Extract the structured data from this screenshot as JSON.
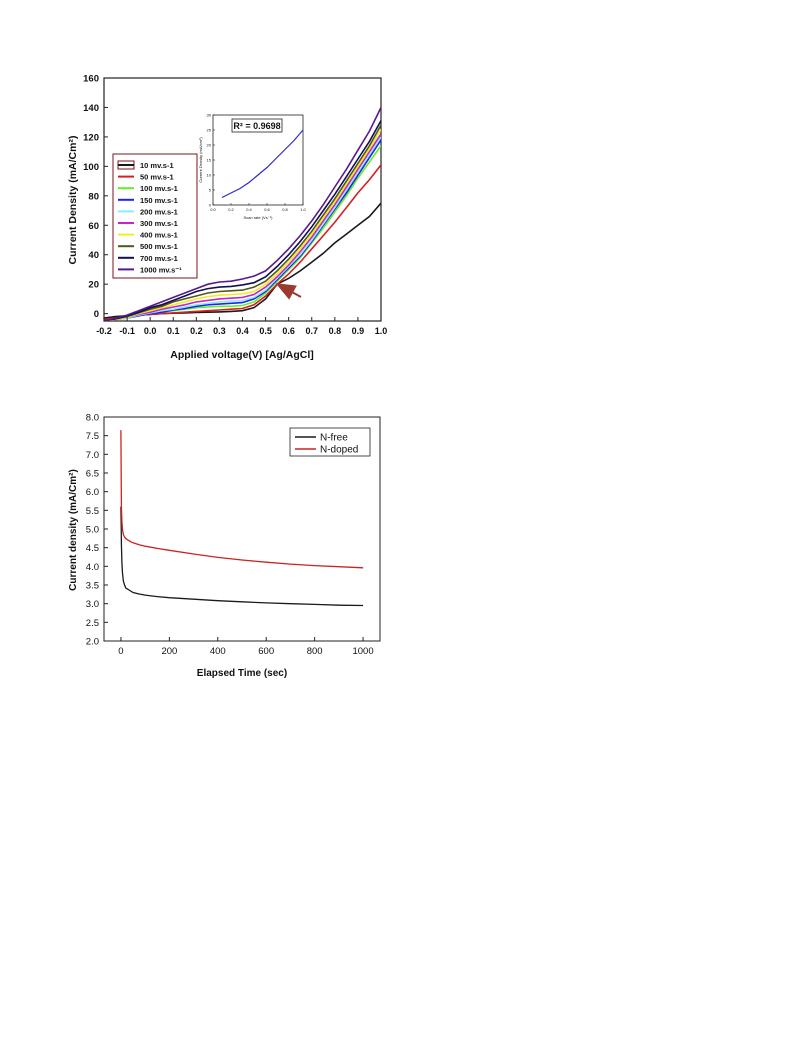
{
  "colors": {
    "axis": "#222222",
    "legend_border": "#7a1414",
    "arrow": "#9b3a2e",
    "inset_line": "#2b2bd6"
  },
  "chart_data": [
    {
      "type": "line",
      "xlabel": "Applied voltage(V) [Ag/AgCl]",
      "ylabel": "Current Density (mA/Cm²)",
      "xlim": [
        -0.2,
        1.0
      ],
      "ylim": [
        -5,
        160
      ],
      "xticks": [
        "-0.2",
        "-0.1",
        "0.0",
        "0.1",
        "0.2",
        "0.3",
        "0.4",
        "0.5",
        "0.6",
        "0.7",
        "0.8",
        "0.9",
        "1.0"
      ],
      "yticks": [
        "0",
        "20",
        "40",
        "60",
        "80",
        "100",
        "120",
        "140",
        "160"
      ],
      "legend_position": "left",
      "x": [
        -0.2,
        -0.15,
        -0.1,
        -0.05,
        0.0,
        0.05,
        0.1,
        0.15,
        0.2,
        0.25,
        0.3,
        0.35,
        0.4,
        0.45,
        0.5,
        0.55,
        0.6,
        0.65,
        0.7,
        0.75,
        0.8,
        0.85,
        0.9,
        0.95,
        1.0
      ],
      "series": [
        {
          "name": "10 mv.s-1",
          "color": "#1a1a1a",
          "values": [
            -3,
            -2,
            -1.5,
            -1,
            -0.5,
            0,
            0.3,
            0.5,
            0.8,
            1,
            1.2,
            1.5,
            2,
            4,
            10,
            20,
            24,
            29,
            35,
            41,
            48,
            54,
            60,
            66,
            75
          ]
        },
        {
          "name": "50 mv.s-1",
          "color": "#d42020",
          "values": [
            -4,
            -3,
            -2,
            -1,
            -0.5,
            0,
            0.5,
            1,
            1.5,
            2,
            2.5,
            3,
            3.5,
            6,
            12,
            20,
            27,
            35,
            44,
            53,
            62,
            72,
            82,
            91,
            101
          ]
        },
        {
          "name": "100 mv.s-1",
          "color": "#66ee22",
          "values": [
            -5,
            -4,
            -3,
            -1.5,
            0,
            1,
            2,
            3,
            4,
            4.5,
            5,
            5,
            5.5,
            8,
            14,
            22,
            30,
            38,
            48,
            58,
            69,
            80,
            92,
            103,
            114
          ]
        },
        {
          "name": "150 mv.s-1",
          "color": "#2020ee",
          "values": [
            -5,
            -4,
            -3,
            -1.5,
            0,
            1,
            2.5,
            3.5,
            5,
            6,
            6.5,
            7,
            7.5,
            10,
            15,
            23,
            31,
            39,
            49,
            60,
            71,
            82,
            94,
            106,
            118
          ]
        },
        {
          "name": "200 mv.s-1",
          "color": "#88eeff",
          "values": [
            -5,
            -4,
            -3,
            -1,
            0.5,
            2,
            3,
            4.5,
            6,
            7,
            8,
            8.5,
            9,
            11,
            16,
            24,
            32,
            40,
            50,
            61,
            72,
            84,
            96,
            108,
            120
          ]
        },
        {
          "name": "300 mv.s-1",
          "color": "#cc22cc",
          "values": [
            -5,
            -4,
            -2.5,
            -0.5,
            1,
            3,
            4.5,
            6,
            8,
            9,
            10,
            10.5,
            11,
            13,
            18,
            25,
            33,
            42,
            52,
            63,
            74,
            86,
            98,
            110,
            122
          ]
        },
        {
          "name": "400 mv.s-1",
          "color": "#eeee22",
          "values": [
            -5,
            -4,
            -2.5,
            0,
            2,
            4,
            6,
            8,
            10,
            11.5,
            12.5,
            13,
            13.5,
            15,
            20,
            27,
            35,
            44,
            54,
            65,
            76,
            88,
            100,
            112,
            125
          ]
        },
        {
          "name": "500 mv.s-1",
          "color": "#55551a",
          "values": [
            -5,
            -3.5,
            -2,
            0.5,
            3,
            5,
            8,
            10,
            12,
            14,
            15,
            15.5,
            16,
            18,
            22,
            29,
            37,
            46,
            56,
            67,
            78,
            90,
            102,
            114,
            128
          ]
        },
        {
          "name": "700 mv.s-1",
          "color": "#101050",
          "values": [
            -5,
            -3.5,
            -1.5,
            1,
            4,
            6,
            9,
            12,
            15,
            17,
            18,
            18.5,
            19.5,
            21,
            25,
            32,
            40,
            49,
            59,
            70,
            81,
            93,
            105,
            117,
            131
          ]
        },
        {
          "name": "1000 mv.s⁻¹",
          "color": "#5a1890",
          "values": [
            -5,
            -3,
            -1,
            2,
            5,
            8,
            11,
            14,
            17,
            20,
            21.5,
            22,
            23.5,
            25.5,
            29,
            36,
            44,
            53,
            63,
            74,
            86,
            98,
            111,
            124,
            140
          ]
        }
      ],
      "annotation_text": "R² = 0.9698",
      "inset": {
        "xlabel": "Scan rate (Vs⁻¹)",
        "ylabel": "Current Density (mA/cm²)",
        "xlim": [
          0.0,
          1.0
        ],
        "ylim": [
          0,
          30
        ],
        "xticks": [
          "0.0",
          "0.2",
          "0.4",
          "0.6",
          "0.8",
          "1.0"
        ],
        "yticks": [
          "0",
          "5",
          "10",
          "15",
          "20",
          "25",
          "30"
        ],
        "x": [
          0.1,
          0.2,
          0.3,
          0.4,
          0.5,
          0.6,
          0.7,
          0.8,
          0.9,
          1.0
        ],
        "values": [
          2.5,
          4,
          5.5,
          7.5,
          10,
          12.5,
          15.5,
          18.5,
          21.5,
          25
        ]
      }
    },
    {
      "type": "line",
      "xlabel": "Elapsed Time (sec)",
      "ylabel": "Current density (mA/Cm²)",
      "xlim": [
        -70,
        1070
      ],
      "ylim": [
        2.0,
        8.0
      ],
      "xticks": [
        "0",
        "200",
        "400",
        "600",
        "800",
        "1000"
      ],
      "yticks": [
        "2.0",
        "2.5",
        "3.0",
        "3.5",
        "4.0",
        "4.5",
        "5.0",
        "5.5",
        "6.0",
        "6.5",
        "7.0",
        "7.5",
        "8.0"
      ],
      "legend_position": "top-right",
      "x": [
        0,
        1,
        2,
        4,
        6,
        10,
        15,
        20,
        30,
        40,
        50,
        75,
        100,
        150,
        200,
        300,
        400,
        500,
        600,
        700,
        800,
        900,
        1000
      ],
      "series": [
        {
          "name": "N-free",
          "color": "#1a1a1a",
          "values": [
            5.6,
            5.1,
            4.6,
            4.1,
            3.85,
            3.6,
            3.5,
            3.42,
            3.38,
            3.34,
            3.3,
            3.26,
            3.23,
            3.19,
            3.16,
            3.12,
            3.08,
            3.05,
            3.02,
            3.0,
            2.98,
            2.96,
            2.95
          ]
        },
        {
          "name": "N-doped",
          "color": "#cc2222",
          "values": [
            7.65,
            6.4,
            5.6,
            5.2,
            5.0,
            4.85,
            4.78,
            4.74,
            4.7,
            4.66,
            4.63,
            4.58,
            4.54,
            4.48,
            4.43,
            4.33,
            4.24,
            4.17,
            4.11,
            4.06,
            4.02,
            3.99,
            3.96
          ]
        }
      ]
    }
  ]
}
